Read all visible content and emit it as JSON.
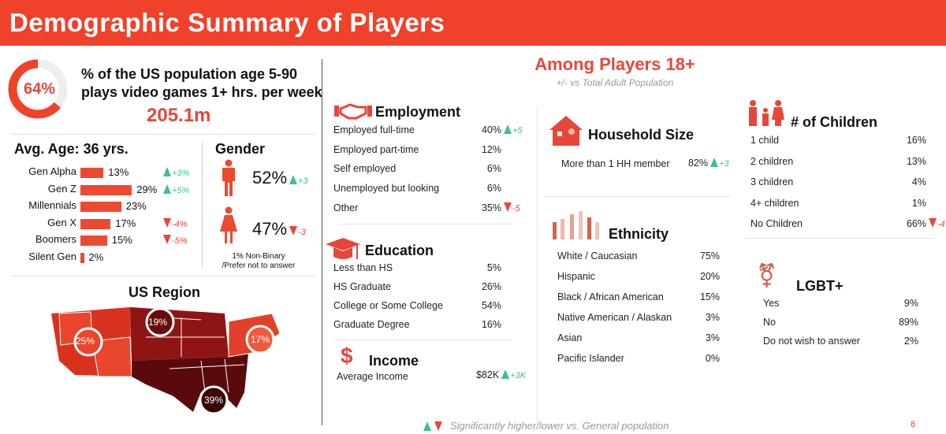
{
  "header": {
    "title": "Demographic Summary of Players"
  },
  "overview": {
    "percent": "64%",
    "percent_value": 64,
    "line1": "% of the US population age 5-90",
    "line2": "plays video games 1+ hrs. per week",
    "count": "205.1m"
  },
  "age": {
    "title": "Avg. Age: 36 yrs.",
    "rows": [
      {
        "label": "Gen Alpha",
        "value": "13%",
        "pct": 13,
        "delta": "+3%",
        "dir": "up"
      },
      {
        "label": "Gen Z",
        "value": "29%",
        "pct": 29,
        "delta": "+5%",
        "dir": "up"
      },
      {
        "label": "Millennials",
        "value": "23%",
        "pct": 23,
        "delta": "",
        "dir": ""
      },
      {
        "label": "Gen X",
        "value": "17%",
        "pct": 17,
        "delta": "-4%",
        "dir": "down"
      },
      {
        "label": "Boomers",
        "value": "15%",
        "pct": 15,
        "delta": "-5%",
        "dir": "down"
      },
      {
        "label": "Silent Gen",
        "value": "2%",
        "pct": 2,
        "delta": "",
        "dir": ""
      }
    ]
  },
  "gender": {
    "title": "Gender",
    "male": {
      "value": "52%",
      "delta": "+3"
    },
    "female": {
      "value": "47%",
      "delta": "-3"
    },
    "note1": "1% Non-Binary",
    "note2": "/Prefer not to answer"
  },
  "region": {
    "title": "US Region",
    "west": "25%",
    "midwest": "19%",
    "northeast": "17%",
    "south": "39%"
  },
  "adults": {
    "title": "Among Players 18+",
    "subtitle": "+/- vs Total Adult Population"
  },
  "employment": {
    "title": "Employment",
    "rows": [
      {
        "label": "Employed full-time",
        "value": "40%",
        "delta": "+5",
        "dir": "up"
      },
      {
        "label": "Employed part-time",
        "value": "12%"
      },
      {
        "label": "Self employed",
        "value": "6%"
      },
      {
        "label": "Unemployed but looking",
        "value": "6%"
      },
      {
        "label": "Other",
        "value": "35%",
        "delta": "-5",
        "dir": "down"
      }
    ]
  },
  "education": {
    "title": "Education",
    "rows": [
      {
        "label": "Less than HS",
        "value": "5%"
      },
      {
        "label": "HS Graduate",
        "value": "26%"
      },
      {
        "label": "College or Some College",
        "value": "54%"
      },
      {
        "label": "Graduate Degree",
        "value": "16%"
      }
    ]
  },
  "income": {
    "title": "Income",
    "label": "Average Income",
    "value": "$82K",
    "delta": "+3K"
  },
  "household": {
    "title": "Household Size",
    "label": "More than 1 HH member",
    "value": "82%",
    "delta": "+3"
  },
  "ethnicity": {
    "title": "Ethnicity",
    "rows": [
      {
        "label": "White / Caucasian",
        "value": "75%"
      },
      {
        "label": "Hispanic",
        "value": "20%"
      },
      {
        "label": "Black / African American",
        "value": "15%"
      },
      {
        "label": "Native American / Alaskan",
        "value": "3%"
      },
      {
        "label": "Asian",
        "value": "3%"
      },
      {
        "label": "Pacific Islander",
        "value": "0%"
      }
    ]
  },
  "children": {
    "title": "# of Children",
    "rows": [
      {
        "label": "1 child",
        "value": "16%"
      },
      {
        "label": "2 children",
        "value": "13%"
      },
      {
        "label": "3 children",
        "value": "4%"
      },
      {
        "label": "4+ children",
        "value": "1%"
      },
      {
        "label": "No Children",
        "value": "66%",
        "delta": "-4",
        "dir": "down"
      }
    ]
  },
  "lgbt": {
    "title": "LGBT+",
    "rows": [
      {
        "label": "Yes",
        "value": "9%"
      },
      {
        "label": "No",
        "value": "89%"
      },
      {
        "label": "Do not wish to answer",
        "value": "2%"
      }
    ]
  },
  "footer": {
    "legend": "Significantly higher/lower vs. General population",
    "page": "8"
  },
  "colors": {
    "brand": "#f0412b",
    "up": "#3dbf99",
    "down": "#e8463a"
  }
}
